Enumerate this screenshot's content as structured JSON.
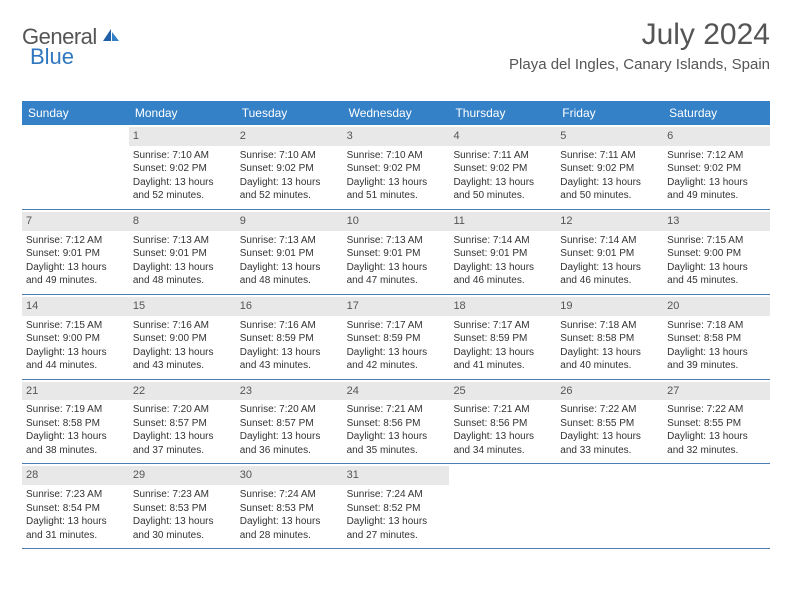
{
  "logo": {
    "text1": "General",
    "text2": "Blue"
  },
  "title": "July 2024",
  "location": "Playa del Ingles, Canary Islands, Spain",
  "header_bg": "#3481c8",
  "day_names": [
    "Sunday",
    "Monday",
    "Tuesday",
    "Wednesday",
    "Thursday",
    "Friday",
    "Saturday"
  ],
  "weeks": [
    [
      {
        "n": "",
        "empty": true
      },
      {
        "n": "1",
        "sr": "Sunrise: 7:10 AM",
        "ss": "Sunset: 9:02 PM",
        "dl1": "Daylight: 13 hours",
        "dl2": "and 52 minutes."
      },
      {
        "n": "2",
        "sr": "Sunrise: 7:10 AM",
        "ss": "Sunset: 9:02 PM",
        "dl1": "Daylight: 13 hours",
        "dl2": "and 52 minutes."
      },
      {
        "n": "3",
        "sr": "Sunrise: 7:10 AM",
        "ss": "Sunset: 9:02 PM",
        "dl1": "Daylight: 13 hours",
        "dl2": "and 51 minutes."
      },
      {
        "n": "4",
        "sr": "Sunrise: 7:11 AM",
        "ss": "Sunset: 9:02 PM",
        "dl1": "Daylight: 13 hours",
        "dl2": "and 50 minutes."
      },
      {
        "n": "5",
        "sr": "Sunrise: 7:11 AM",
        "ss": "Sunset: 9:02 PM",
        "dl1": "Daylight: 13 hours",
        "dl2": "and 50 minutes."
      },
      {
        "n": "6",
        "sr": "Sunrise: 7:12 AM",
        "ss": "Sunset: 9:02 PM",
        "dl1": "Daylight: 13 hours",
        "dl2": "and 49 minutes."
      }
    ],
    [
      {
        "n": "7",
        "sr": "Sunrise: 7:12 AM",
        "ss": "Sunset: 9:01 PM",
        "dl1": "Daylight: 13 hours",
        "dl2": "and 49 minutes."
      },
      {
        "n": "8",
        "sr": "Sunrise: 7:13 AM",
        "ss": "Sunset: 9:01 PM",
        "dl1": "Daylight: 13 hours",
        "dl2": "and 48 minutes."
      },
      {
        "n": "9",
        "sr": "Sunrise: 7:13 AM",
        "ss": "Sunset: 9:01 PM",
        "dl1": "Daylight: 13 hours",
        "dl2": "and 48 minutes."
      },
      {
        "n": "10",
        "sr": "Sunrise: 7:13 AM",
        "ss": "Sunset: 9:01 PM",
        "dl1": "Daylight: 13 hours",
        "dl2": "and 47 minutes."
      },
      {
        "n": "11",
        "sr": "Sunrise: 7:14 AM",
        "ss": "Sunset: 9:01 PM",
        "dl1": "Daylight: 13 hours",
        "dl2": "and 46 minutes."
      },
      {
        "n": "12",
        "sr": "Sunrise: 7:14 AM",
        "ss": "Sunset: 9:01 PM",
        "dl1": "Daylight: 13 hours",
        "dl2": "and 46 minutes."
      },
      {
        "n": "13",
        "sr": "Sunrise: 7:15 AM",
        "ss": "Sunset: 9:00 PM",
        "dl1": "Daylight: 13 hours",
        "dl2": "and 45 minutes."
      }
    ],
    [
      {
        "n": "14",
        "sr": "Sunrise: 7:15 AM",
        "ss": "Sunset: 9:00 PM",
        "dl1": "Daylight: 13 hours",
        "dl2": "and 44 minutes."
      },
      {
        "n": "15",
        "sr": "Sunrise: 7:16 AM",
        "ss": "Sunset: 9:00 PM",
        "dl1": "Daylight: 13 hours",
        "dl2": "and 43 minutes."
      },
      {
        "n": "16",
        "sr": "Sunrise: 7:16 AM",
        "ss": "Sunset: 8:59 PM",
        "dl1": "Daylight: 13 hours",
        "dl2": "and 43 minutes."
      },
      {
        "n": "17",
        "sr": "Sunrise: 7:17 AM",
        "ss": "Sunset: 8:59 PM",
        "dl1": "Daylight: 13 hours",
        "dl2": "and 42 minutes."
      },
      {
        "n": "18",
        "sr": "Sunrise: 7:17 AM",
        "ss": "Sunset: 8:59 PM",
        "dl1": "Daylight: 13 hours",
        "dl2": "and 41 minutes."
      },
      {
        "n": "19",
        "sr": "Sunrise: 7:18 AM",
        "ss": "Sunset: 8:58 PM",
        "dl1": "Daylight: 13 hours",
        "dl2": "and 40 minutes."
      },
      {
        "n": "20",
        "sr": "Sunrise: 7:18 AM",
        "ss": "Sunset: 8:58 PM",
        "dl1": "Daylight: 13 hours",
        "dl2": "and 39 minutes."
      }
    ],
    [
      {
        "n": "21",
        "sr": "Sunrise: 7:19 AM",
        "ss": "Sunset: 8:58 PM",
        "dl1": "Daylight: 13 hours",
        "dl2": "and 38 minutes."
      },
      {
        "n": "22",
        "sr": "Sunrise: 7:20 AM",
        "ss": "Sunset: 8:57 PM",
        "dl1": "Daylight: 13 hours",
        "dl2": "and 37 minutes."
      },
      {
        "n": "23",
        "sr": "Sunrise: 7:20 AM",
        "ss": "Sunset: 8:57 PM",
        "dl1": "Daylight: 13 hours",
        "dl2": "and 36 minutes."
      },
      {
        "n": "24",
        "sr": "Sunrise: 7:21 AM",
        "ss": "Sunset: 8:56 PM",
        "dl1": "Daylight: 13 hours",
        "dl2": "and 35 minutes."
      },
      {
        "n": "25",
        "sr": "Sunrise: 7:21 AM",
        "ss": "Sunset: 8:56 PM",
        "dl1": "Daylight: 13 hours",
        "dl2": "and 34 minutes."
      },
      {
        "n": "26",
        "sr": "Sunrise: 7:22 AM",
        "ss": "Sunset: 8:55 PM",
        "dl1": "Daylight: 13 hours",
        "dl2": "and 33 minutes."
      },
      {
        "n": "27",
        "sr": "Sunrise: 7:22 AM",
        "ss": "Sunset: 8:55 PM",
        "dl1": "Daylight: 13 hours",
        "dl2": "and 32 minutes."
      }
    ],
    [
      {
        "n": "28",
        "sr": "Sunrise: 7:23 AM",
        "ss": "Sunset: 8:54 PM",
        "dl1": "Daylight: 13 hours",
        "dl2": "and 31 minutes."
      },
      {
        "n": "29",
        "sr": "Sunrise: 7:23 AM",
        "ss": "Sunset: 8:53 PM",
        "dl1": "Daylight: 13 hours",
        "dl2": "and 30 minutes."
      },
      {
        "n": "30",
        "sr": "Sunrise: 7:24 AM",
        "ss": "Sunset: 8:53 PM",
        "dl1": "Daylight: 13 hours",
        "dl2": "and 28 minutes."
      },
      {
        "n": "31",
        "sr": "Sunrise: 7:24 AM",
        "ss": "Sunset: 8:52 PM",
        "dl1": "Daylight: 13 hours",
        "dl2": "and 27 minutes."
      },
      {
        "n": "",
        "empty": true
      },
      {
        "n": "",
        "empty": true
      },
      {
        "n": "",
        "empty": true
      }
    ]
  ]
}
